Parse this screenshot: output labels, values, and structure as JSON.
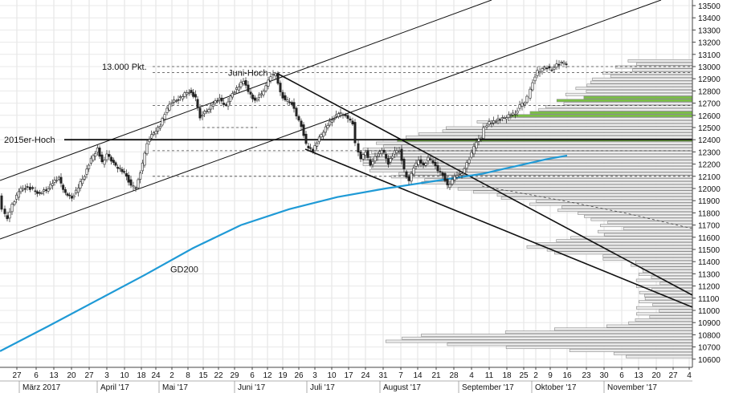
{
  "chart_data": {
    "type": "candlestick",
    "title": "",
    "xlabel": "",
    "ylabel": "",
    "ylim": [
      10550,
      13550
    ],
    "y_ticks": [
      10600,
      10700,
      10800,
      10900,
      11000,
      11100,
      11200,
      11300,
      11400,
      11500,
      11600,
      11700,
      11800,
      11900,
      12000,
      12100,
      12200,
      12300,
      12400,
      12500,
      12600,
      12700,
      12800,
      12900,
      13000,
      13100,
      13200,
      13300,
      13400,
      13500
    ],
    "x_day_ticks": [
      {
        "label": "27",
        "x": 21
      },
      {
        "label": "6",
        "x": 45
      },
      {
        "label": "13",
        "x": 67
      },
      {
        "label": "20",
        "x": 89
      },
      {
        "label": "27",
        "x": 111
      },
      {
        "label": "3",
        "x": 133
      },
      {
        "label": "10",
        "x": 155
      },
      {
        "label": "18",
        "x": 176
      },
      {
        "label": "24",
        "x": 194
      },
      {
        "label": "2",
        "x": 214
      },
      {
        "label": "8",
        "x": 234
      },
      {
        "label": "15",
        "x": 253
      },
      {
        "label": "22",
        "x": 272
      },
      {
        "label": "29",
        "x": 292
      },
      {
        "label": "6",
        "x": 314
      },
      {
        "label": "12",
        "x": 333
      },
      {
        "label": "19",
        "x": 352
      },
      {
        "label": "26",
        "x": 372
      },
      {
        "label": "3",
        "x": 392
      },
      {
        "label": "10",
        "x": 413
      },
      {
        "label": "17",
        "x": 434
      },
      {
        "label": "24",
        "x": 455
      },
      {
        "label": "31",
        "x": 477
      },
      {
        "label": "7",
        "x": 499
      },
      {
        "label": "14",
        "x": 520
      },
      {
        "label": "21",
        "x": 543
      },
      {
        "label": "28",
        "x": 565
      },
      {
        "label": "4",
        "x": 587
      },
      {
        "label": "11",
        "x": 609
      },
      {
        "label": "18",
        "x": 631
      },
      {
        "label": "25",
        "x": 652
      },
      {
        "label": "2",
        "x": 667
      },
      {
        "label": "9",
        "x": 685
      },
      {
        "label": "16",
        "x": 706
      },
      {
        "label": "23",
        "x": 730
      },
      {
        "label": "30",
        "x": 752
      },
      {
        "label": "6",
        "x": 774
      },
      {
        "label": "13",
        "x": 795
      },
      {
        "label": "20",
        "x": 817
      },
      {
        "label": "27",
        "x": 838
      },
      {
        "label": "4",
        "x": 858
      }
    ],
    "x_month_labels": [
      {
        "label": "März 2017",
        "x": 28
      },
      {
        "label": "April '17",
        "x": 125
      },
      {
        "label": "Mai '17",
        "x": 202
      },
      {
        "label": "Juni '17",
        "x": 296
      },
      {
        "label": "Juli '17",
        "x": 386
      },
      {
        "label": "August '17",
        "x": 477
      },
      {
        "label": "September '17",
        "x": 575
      },
      {
        "label": "Oktober '17",
        "x": 666
      },
      {
        "label": "November '17",
        "x": 756
      }
    ],
    "annotations": [
      {
        "text": "13.000 Pkt.",
        "level": 13000
      },
      {
        "text": "Juni-Hoch",
        "level": 12950
      },
      {
        "text": "2015er-Hoch",
        "level": 12400
      },
      {
        "text": "GD200",
        "level": 11340
      }
    ],
    "gd200": [
      [
        0,
        10665
      ],
      [
        60,
        10870
      ],
      [
        120,
        11080
      ],
      [
        180,
        11290
      ],
      [
        240,
        11510
      ],
      [
        300,
        11700
      ],
      [
        360,
        11830
      ],
      [
        420,
        11930
      ],
      [
        480,
        12000
      ],
      [
        540,
        12060
      ],
      [
        600,
        12120
      ],
      [
        640,
        12180
      ],
      [
        680,
        12240
      ],
      [
        706,
        12270
      ]
    ],
    "price_path": [
      [
        2,
        11940
      ],
      [
        6,
        11820
      ],
      [
        12,
        11760
      ],
      [
        18,
        11860
      ],
      [
        26,
        11980
      ],
      [
        34,
        12010
      ],
      [
        44,
        11990
      ],
      [
        52,
        11960
      ],
      [
        60,
        11990
      ],
      [
        68,
        12050
      ],
      [
        76,
        12080
      ],
      [
        84,
        11960
      ],
      [
        92,
        11920
      ],
      [
        100,
        12010
      ],
      [
        108,
        12110
      ],
      [
        116,
        12240
      ],
      [
        124,
        12330
      ],
      [
        130,
        12210
      ],
      [
        136,
        12280
      ],
      [
        144,
        12200
      ],
      [
        152,
        12160
      ],
      [
        160,
        12100
      ],
      [
        166,
        12020
      ],
      [
        172,
        12000
      ],
      [
        180,
        12200
      ],
      [
        186,
        12380
      ],
      [
        194,
        12460
      ],
      [
        202,
        12520
      ],
      [
        208,
        12610
      ],
      [
        214,
        12700
      ],
      [
        222,
        12720
      ],
      [
        230,
        12760
      ],
      [
        238,
        12800
      ],
      [
        246,
        12740
      ],
      [
        252,
        12590
      ],
      [
        260,
        12640
      ],
      [
        268,
        12700
      ],
      [
        276,
        12730
      ],
      [
        284,
        12680
      ],
      [
        292,
        12780
      ],
      [
        300,
        12840
      ],
      [
        306,
        12880
      ],
      [
        312,
        12800
      ],
      [
        320,
        12720
      ],
      [
        328,
        12780
      ],
      [
        334,
        12840
      ],
      [
        340,
        12920
      ],
      [
        346,
        12950
      ],
      [
        352,
        12780
      ],
      [
        358,
        12720
      ],
      [
        366,
        12700
      ],
      [
        372,
        12600
      ],
      [
        378,
        12520
      ],
      [
        384,
        12360
      ],
      [
        392,
        12310
      ],
      [
        400,
        12410
      ],
      [
        408,
        12500
      ],
      [
        416,
        12560
      ],
      [
        424,
        12620
      ],
      [
        430,
        12600
      ],
      [
        436,
        12580
      ],
      [
        442,
        12540
      ],
      [
        446,
        12380
      ],
      [
        452,
        12240
      ],
      [
        458,
        12300
      ],
      [
        464,
        12200
      ],
      [
        470,
        12250
      ],
      [
        478,
        12320
      ],
      [
        486,
        12210
      ],
      [
        494,
        12300
      ],
      [
        500,
        12320
      ],
      [
        506,
        12150
      ],
      [
        512,
        12060
      ],
      [
        518,
        12170
      ],
      [
        524,
        12240
      ],
      [
        530,
        12180
      ],
      [
        536,
        12250
      ],
      [
        542,
        12210
      ],
      [
        548,
        12150
      ],
      [
        554,
        12120
      ],
      [
        560,
        12020
      ],
      [
        566,
        12070
      ],
      [
        572,
        12110
      ],
      [
        578,
        12130
      ],
      [
        584,
        12200
      ],
      [
        590,
        12290
      ],
      [
        596,
        12380
      ],
      [
        602,
        12420
      ],
      [
        606,
        12500
      ],
      [
        612,
        12540
      ],
      [
        620,
        12560
      ],
      [
        628,
        12570
      ],
      [
        636,
        12600
      ],
      [
        644,
        12610
      ],
      [
        650,
        12680
      ],
      [
        656,
        12700
      ],
      [
        660,
        12750
      ],
      [
        666,
        12880
      ],
      [
        672,
        12960
      ],
      [
        678,
        12980
      ],
      [
        684,
        12990
      ],
      [
        690,
        12980
      ],
      [
        696,
        13010
      ],
      [
        702,
        13030
      ],
      [
        708,
        13020
      ]
    ]
  }
}
